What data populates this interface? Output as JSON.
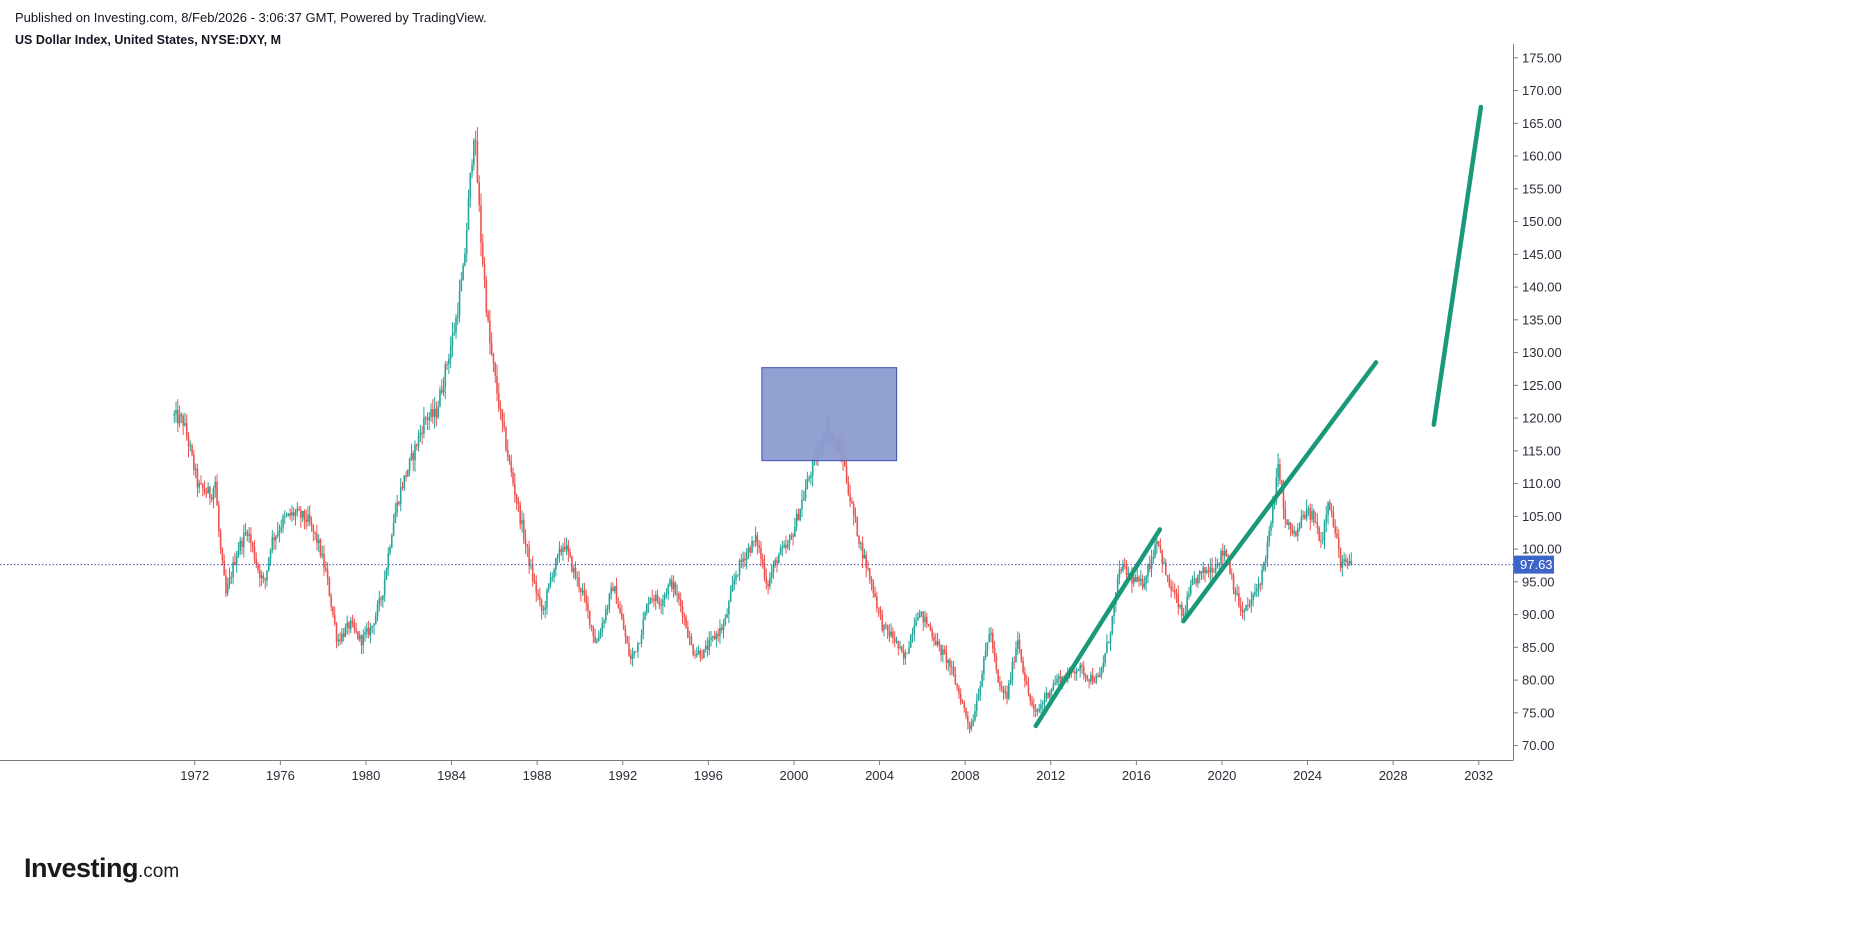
{
  "header": {
    "published": "Published on Investing.com, 8/Feb/2026 - 3:06:37 GMT, Powered by TradingView.",
    "symbol": "US Dollar Index, United States, NYSE:DXY, M"
  },
  "logo": {
    "brand": "Investing",
    "tld": ".com"
  },
  "colors": {
    "up": "#26a69a",
    "down": "#ef5350",
    "line": "#1a9979",
    "zone_fill": "#8c9bd0",
    "zone_stroke": "#3f51b5",
    "price_line": "#3f51b5",
    "price_badge": "#3d64c8"
  },
  "chart_data": {
    "type": "candlestick",
    "interval": "M",
    "x_tick_labels": [
      "1972",
      "1976",
      "1980",
      "1984",
      "1988",
      "1992",
      "1996",
      "2000",
      "2004",
      "2008",
      "2012",
      "2016",
      "2020",
      "2024",
      "2028",
      "2032"
    ],
    "y_tick_labels": [
      "175.00",
      "170.00",
      "165.00",
      "160.00",
      "155.00",
      "150.00",
      "145.00",
      "140.00",
      "135.00",
      "130.00",
      "125.00",
      "120.00",
      "115.00",
      "110.00",
      "105.00",
      "100.00",
      "95.00",
      "90.00",
      "85.00",
      "80.00",
      "75.00",
      "70.00"
    ],
    "xlim": [
      1962.9,
      2033.6
    ],
    "ylim": [
      67.8,
      176.5
    ],
    "current_price": 97.63,
    "current_price_label": "97.63",
    "price_path": [
      [
        1971.0,
        120.4
      ],
      [
        1971.5,
        119.5
      ],
      [
        1971.8,
        115.5
      ],
      [
        1972.2,
        109.5
      ],
      [
        1972.8,
        108.3
      ],
      [
        1973.0,
        110.3
      ],
      [
        1973.2,
        101.0
      ],
      [
        1973.5,
        93.0
      ],
      [
        1974.0,
        99.5
      ],
      [
        1974.5,
        103.0
      ],
      [
        1975.0,
        97.0
      ],
      [
        1975.3,
        94.5
      ],
      [
        1975.6,
        101.0
      ],
      [
        1976.2,
        104.5
      ],
      [
        1976.7,
        105.5
      ],
      [
        1977.3,
        104.5
      ],
      [
        1977.8,
        101.0
      ],
      [
        1978.2,
        96.0
      ],
      [
        1978.7,
        86.0
      ],
      [
        1979.3,
        88.5
      ],
      [
        1979.8,
        86.0
      ],
      [
        1980.3,
        88.0
      ],
      [
        1980.8,
        93.0
      ],
      [
        1981.3,
        104.0
      ],
      [
        1981.7,
        109.5
      ],
      [
        1982.2,
        114.0
      ],
      [
        1982.8,
        120.0
      ],
      [
        1983.3,
        120.5
      ],
      [
        1983.8,
        128.0
      ],
      [
        1984.2,
        134.0
      ],
      [
        1984.6,
        142.5
      ],
      [
        1985.1,
        164.5
      ],
      [
        1985.4,
        148.0
      ],
      [
        1985.8,
        132.0
      ],
      [
        1986.3,
        121.0
      ],
      [
        1986.8,
        112.0
      ],
      [
        1987.3,
        104.0
      ],
      [
        1987.8,
        96.0
      ],
      [
        1988.3,
        90.0
      ],
      [
        1988.7,
        96.0
      ],
      [
        1989.3,
        101.0
      ],
      [
        1989.7,
        97.0
      ],
      [
        1990.2,
        93.0
      ],
      [
        1990.8,
        85.5
      ],
      [
        1991.2,
        90.0
      ],
      [
        1991.6,
        94.5
      ],
      [
        1992.0,
        89.0
      ],
      [
        1992.4,
        83.0
      ],
      [
        1992.8,
        86.0
      ],
      [
        1993.3,
        93.0
      ],
      [
        1993.8,
        92.0
      ],
      [
        1994.3,
        95.0
      ],
      [
        1994.8,
        91.0
      ],
      [
        1995.3,
        84.5
      ],
      [
        1995.8,
        84.0
      ],
      [
        1996.3,
        86.5
      ],
      [
        1996.8,
        88.5
      ],
      [
        1997.3,
        96.0
      ],
      [
        1997.8,
        99.5
      ],
      [
        1998.3,
        101.5
      ],
      [
        1998.8,
        94.5
      ],
      [
        1999.3,
        99.0
      ],
      [
        1999.8,
        100.5
      ],
      [
        2000.3,
        106.0
      ],
      [
        2000.8,
        111.5
      ],
      [
        2001.3,
        116.0
      ],
      [
        2001.6,
        119.0
      ],
      [
        2001.9,
        116.5
      ],
      [
        2002.3,
        114.5
      ],
      [
        2002.7,
        107.0
      ],
      [
        2003.2,
        100.0
      ],
      [
        2003.7,
        94.5
      ],
      [
        2004.2,
        88.0
      ],
      [
        2004.7,
        86.5
      ],
      [
        2005.2,
        83.0
      ],
      [
        2005.8,
        90.5
      ],
      [
        2006.3,
        88.5
      ],
      [
        2006.8,
        85.0
      ],
      [
        2007.3,
        82.5
      ],
      [
        2007.8,
        77.5
      ],
      [
        2008.3,
        72.5
      ],
      [
        2008.8,
        80.5
      ],
      [
        2009.2,
        88.0
      ],
      [
        2009.6,
        79.0
      ],
      [
        2010.0,
        77.5
      ],
      [
        2010.5,
        86.5
      ],
      [
        2010.9,
        79.0
      ],
      [
        2011.3,
        74.5
      ],
      [
        2011.8,
        77.5
      ],
      [
        2012.3,
        80.0
      ],
      [
        2012.8,
        80.5
      ],
      [
        2013.3,
        82.0
      ],
      [
        2013.8,
        80.5
      ],
      [
        2014.3,
        80.0
      ],
      [
        2014.8,
        87.0
      ],
      [
        2015.3,
        97.5
      ],
      [
        2015.8,
        95.5
      ],
      [
        2016.3,
        94.5
      ],
      [
        2016.8,
        99.0
      ],
      [
        2017.0,
        102.0
      ],
      [
        2017.5,
        95.0
      ],
      [
        2017.9,
        92.5
      ],
      [
        2018.2,
        89.5
      ],
      [
        2018.7,
        95.0
      ],
      [
        2019.2,
        96.5
      ],
      [
        2019.7,
        97.5
      ],
      [
        2020.2,
        100.0
      ],
      [
        2020.7,
        93.0
      ],
      [
        2021.0,
        90.0
      ],
      [
        2021.5,
        92.5
      ],
      [
        2021.9,
        96.0
      ],
      [
        2022.3,
        103.0
      ],
      [
        2022.7,
        113.0
      ],
      [
        2023.0,
        104.0
      ],
      [
        2023.5,
        102.0
      ],
      [
        2023.9,
        105.5
      ],
      [
        2024.3,
        105.0
      ],
      [
        2024.7,
        101.0
      ],
      [
        2025.0,
        108.0
      ],
      [
        2025.3,
        103.0
      ],
      [
        2025.6,
        97.8
      ],
      [
        2026.0,
        97.6
      ]
    ],
    "rectangle": {
      "x_range": [
        1998.5,
        2004.8
      ],
      "y_range": [
        113.5,
        127.7
      ]
    },
    "trend_lines": [
      {
        "x": [
          2011.3,
          2017.1
        ],
        "y": [
          73.0,
          103.0
        ]
      },
      {
        "x": [
          2018.2,
          2027.2
        ],
        "y": [
          89.0,
          128.5
        ]
      },
      {
        "x": [
          2029.9,
          2032.1
        ],
        "y": [
          119.0,
          167.5
        ]
      }
    ]
  }
}
